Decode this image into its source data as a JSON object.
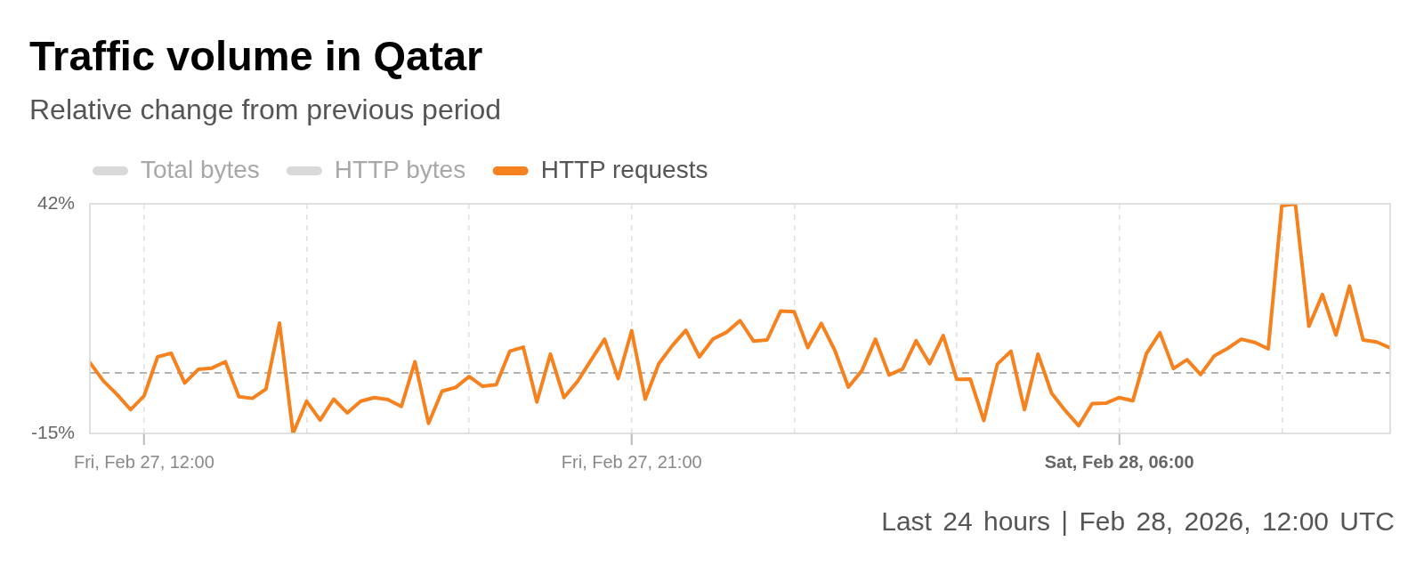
{
  "chart_data": {
    "type": "line",
    "title": "Traffic volume in Qatar",
    "subtitle": "Relative change from previous period",
    "annotations": [
      "Last 24 hours | Feb 28, 2026, 12:00 UTC"
    ],
    "x": [
      "2026-02-27T11:00",
      "2026-02-27T11:15",
      "2026-02-27T11:30",
      "2026-02-27T11:45",
      "2026-02-27T12:00",
      "2026-02-27T12:15",
      "2026-02-27T12:30",
      "2026-02-27T12:45",
      "2026-02-27T13:00",
      "2026-02-27T13:15",
      "2026-02-27T13:30",
      "2026-02-27T13:45",
      "2026-02-27T14:00",
      "2026-02-27T14:15",
      "2026-02-27T14:30",
      "2026-02-27T14:45",
      "2026-02-27T15:00",
      "2026-02-27T15:15",
      "2026-02-27T15:30",
      "2026-02-27T15:45",
      "2026-02-27T16:00",
      "2026-02-27T16:15",
      "2026-02-27T16:30",
      "2026-02-27T16:45",
      "2026-02-27T17:00",
      "2026-02-27T17:15",
      "2026-02-27T17:30",
      "2026-02-27T17:45",
      "2026-02-27T18:00",
      "2026-02-27T18:15",
      "2026-02-27T18:30",
      "2026-02-27T18:45",
      "2026-02-27T19:00",
      "2026-02-27T19:15",
      "2026-02-27T19:30",
      "2026-02-27T19:45",
      "2026-02-27T20:00",
      "2026-02-27T20:15",
      "2026-02-27T20:30",
      "2026-02-27T20:45",
      "2026-02-27T21:00",
      "2026-02-27T21:15",
      "2026-02-27T21:30",
      "2026-02-27T21:45",
      "2026-02-27T22:00",
      "2026-02-27T22:15",
      "2026-02-27T22:30",
      "2026-02-27T22:45",
      "2026-02-27T23:00",
      "2026-02-27T23:15",
      "2026-02-27T23:30",
      "2026-02-27T23:45",
      "2026-02-28T00:00",
      "2026-02-28T00:15",
      "2026-02-28T00:30",
      "2026-02-28T00:45",
      "2026-02-28T01:00",
      "2026-02-28T01:15",
      "2026-02-28T01:30",
      "2026-02-28T01:45",
      "2026-02-28T02:00",
      "2026-02-28T02:15",
      "2026-02-28T02:30",
      "2026-02-28T02:45",
      "2026-02-28T03:00",
      "2026-02-28T03:15",
      "2026-02-28T03:30",
      "2026-02-28T03:45",
      "2026-02-28T04:00",
      "2026-02-28T04:15",
      "2026-02-28T04:30",
      "2026-02-28T04:45",
      "2026-02-28T05:00",
      "2026-02-28T05:15",
      "2026-02-28T05:30",
      "2026-02-28T05:45",
      "2026-02-28T06:00",
      "2026-02-28T06:15",
      "2026-02-28T06:30",
      "2026-02-28T06:45",
      "2026-02-28T07:00",
      "2026-02-28T07:15",
      "2026-02-28T07:30",
      "2026-02-28T07:45",
      "2026-02-28T08:00",
      "2026-02-28T08:15",
      "2026-02-28T08:30",
      "2026-02-28T08:45",
      "2026-02-28T09:00",
      "2026-02-28T09:15",
      "2026-02-28T09:30",
      "2026-02-28T09:45",
      "2026-02-28T10:00",
      "2026-02-28T10:15",
      "2026-02-28T10:30",
      "2026-02-28T10:45",
      "2026-02-28T11:00"
    ],
    "series": [
      {
        "name": "Total bytes",
        "color": "#d9d9d9",
        "values": [
          null,
          null,
          null,
          null,
          null,
          null,
          null,
          null,
          null,
          null,
          null,
          null,
          null,
          null,
          null,
          null,
          null,
          null,
          null,
          null,
          null,
          null,
          null,
          null,
          null,
          null,
          null,
          null,
          null,
          null,
          null,
          null,
          null,
          null,
          null,
          null,
          null,
          null,
          null,
          null,
          null,
          null,
          null,
          null,
          null,
          null,
          null,
          null,
          null,
          null,
          null,
          null,
          null,
          null,
          null,
          null,
          null,
          null,
          null,
          null,
          null,
          null,
          null,
          null,
          null,
          null,
          null,
          null,
          null,
          null,
          null,
          null,
          null,
          null,
          null,
          null,
          null,
          null,
          null,
          null,
          null,
          null,
          null,
          null,
          null,
          null,
          null,
          null,
          null,
          null,
          null,
          null,
          null,
          null,
          null,
          null,
          null
        ]
      },
      {
        "name": "HTTP bytes",
        "color": "#d9d9d9",
        "values": [
          null,
          null,
          null,
          null,
          null,
          null,
          null,
          null,
          null,
          null,
          null,
          null,
          null,
          null,
          null,
          null,
          null,
          null,
          null,
          null,
          null,
          null,
          null,
          null,
          null,
          null,
          null,
          null,
          null,
          null,
          null,
          null,
          null,
          null,
          null,
          null,
          null,
          null,
          null,
          null,
          null,
          null,
          null,
          null,
          null,
          null,
          null,
          null,
          null,
          null,
          null,
          null,
          null,
          null,
          null,
          null,
          null,
          null,
          null,
          null,
          null,
          null,
          null,
          null,
          null,
          null,
          null,
          null,
          null,
          null,
          null,
          null,
          null,
          null,
          null,
          null,
          null,
          null,
          null,
          null,
          null,
          null,
          null,
          null,
          null,
          null,
          null,
          null,
          null,
          null,
          null,
          null,
          null,
          null,
          null,
          null,
          null
        ]
      },
      {
        "name": "HTTP requests",
        "color": "#f6821f",
        "values": [
          2.6,
          -2.0,
          -5.3,
          -9.1,
          -5.7,
          4.0,
          4.9,
          -2.5,
          0.9,
          1.2,
          2.8,
          -5.9,
          -6.3,
          -4.0,
          12.4,
          -15,
          -7.0,
          -11.7,
          -6.5,
          -9.9,
          -7.0,
          -6.1,
          -6.6,
          -8.3,
          2.8,
          -12.5,
          -4.5,
          -3.6,
          -0.9,
          -3.3,
          -2.9,
          5.4,
          6.4,
          -7.2,
          4.7,
          -6.1,
          -2.1,
          3.2,
          8.4,
          -1.4,
          10.5,
          -6.5,
          2.3,
          6.8,
          10.6,
          4.0,
          8.4,
          10.1,
          13.0,
          7.9,
          8.2,
          15.4,
          15.2,
          6.3,
          12.3,
          5.6,
          -3.5,
          0.6,
          8.4,
          -0.5,
          1.0,
          8.0,
          2.3,
          9.3,
          -1.6,
          -1.5,
          -11.8,
          2.2,
          5.4,
          -9.1,
          4.7,
          -5.0,
          -9.3,
          -13.1,
          -7.6,
          -7.5,
          -6.1,
          -6.9,
          4.8,
          10.0,
          1.1,
          3.3,
          -0.4,
          4.2,
          6.1,
          8.4,
          7.6,
          6.0,
          41.5,
          42,
          11.6,
          19.5,
          9.4,
          21.6,
          8.2,
          7.7,
          6.2
        ]
      }
    ],
    "xlim": [
      "2026-02-27T11:00",
      "2026-02-28T11:00"
    ],
    "xticks": [
      {
        "value": "2026-02-27T12:00",
        "label": "Fri, Feb 27, 12:00"
      },
      {
        "value": "2026-02-27T15:00",
        "label": null
      },
      {
        "value": "2026-02-27T18:00",
        "label": null
      },
      {
        "value": "2026-02-27T21:00",
        "label": "Fri, Feb 27, 21:00"
      },
      {
        "value": "2026-02-28T00:00",
        "label": null
      },
      {
        "value": "2026-02-28T03:00",
        "label": null
      },
      {
        "value": "2026-02-28T06:00",
        "label": "Sat, Feb 28, 06:00"
      },
      {
        "value": "2026-02-28T09:00",
        "label": null
      }
    ],
    "ylim": [
      -15,
      42
    ],
    "yticks": [
      {
        "value": -15,
        "label": "-15%"
      },
      {
        "value": 42,
        "label": "42%"
      }
    ],
    "ref_lines": [
      {
        "axis": "y",
        "value": 0,
        "color": "#999999",
        "line_style": "dashed"
      }
    ],
    "grid": "x",
    "legend": "top left",
    "marker": "none"
  }
}
